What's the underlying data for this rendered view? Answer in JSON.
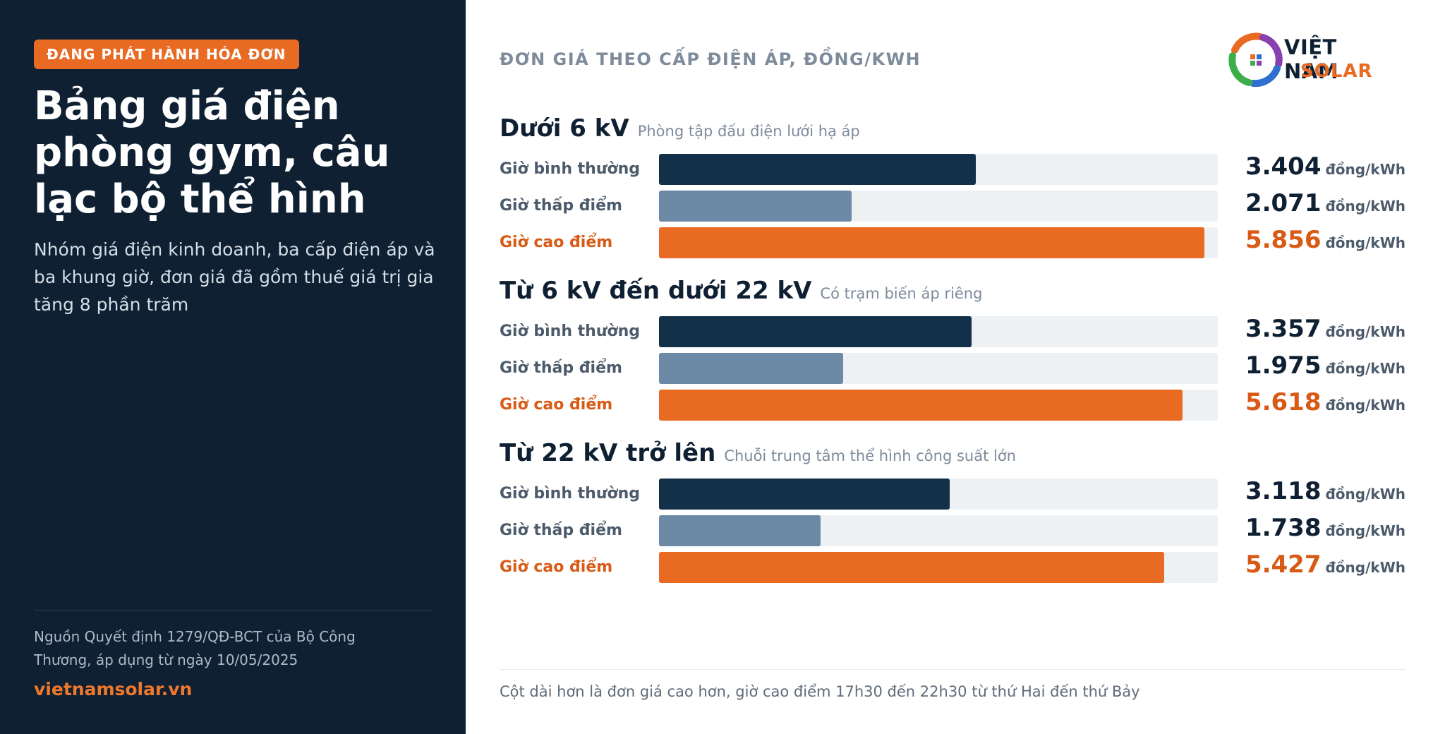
{
  "left": {
    "badge": "ĐANG PHÁT HÀNH HÓA ĐƠN",
    "title": "Bảng giá điện phòng gym, câu lạc bộ thể hình",
    "subtitle": "Nhóm giá điện kinh doanh, ba cấp điện áp và ba khung giờ, đơn giá đã gồm thuế giá trị gia tăng 8 phần trăm",
    "source": "Nguồn Quyết định 1279/QĐ-BCT của Bộ Công Thương, áp dụng từ ngày 10/05/2025",
    "site": "vietnamsolar.vn"
  },
  "logo": {
    "word1": "VIỆT NAM",
    "word2": "SOLAR"
  },
  "chart_data": {
    "type": "bar",
    "title": "ĐƠN GIÁ THEO CẤP ĐIỆN ÁP, ĐỒNG/KWH",
    "unit": "đồng/kWh",
    "xlim": [
      0,
      6000
    ],
    "groups": [
      {
        "name": "Dưới 6 kV",
        "note": "Phòng tập đấu điện lưới hạ áp",
        "rows": [
          {
            "label": "Giờ bình thường",
            "kind": "normal",
            "value": 3404,
            "value_label": "3.404"
          },
          {
            "label": "Giờ thấp điểm",
            "kind": "low",
            "value": 2071,
            "value_label": "2.071"
          },
          {
            "label": "Giờ cao điểm",
            "kind": "peak",
            "value": 5856,
            "value_label": "5.856"
          }
        ]
      },
      {
        "name": "Từ 6 kV đến dưới 22 kV",
        "note": "Có trạm biến áp riêng",
        "rows": [
          {
            "label": "Giờ bình thường",
            "kind": "normal",
            "value": 3357,
            "value_label": "3.357"
          },
          {
            "label": "Giờ thấp điểm",
            "kind": "low",
            "value": 1975,
            "value_label": "1.975"
          },
          {
            "label": "Giờ cao điểm",
            "kind": "peak",
            "value": 5618,
            "value_label": "5.618"
          }
        ]
      },
      {
        "name": "Từ 22 kV trở lên",
        "note": "Chuỗi trung tâm thể hình công suất lớn",
        "rows": [
          {
            "label": "Giờ bình thường",
            "kind": "normal",
            "value": 3118,
            "value_label": "3.118"
          },
          {
            "label": "Giờ thấp điểm",
            "kind": "low",
            "value": 1738,
            "value_label": "1.738"
          },
          {
            "label": "Giờ cao điểm",
            "kind": "peak",
            "value": 5427,
            "value_label": "5.427"
          }
        ]
      }
    ]
  },
  "footnote": "Cột dài hơn là đơn giá cao hơn, giờ cao điểm 17h30 đến 22h30 từ thứ Hai đến thứ Bảy",
  "colors": {
    "normal": "#13304a",
    "low": "#6c8aa6",
    "peak": "#e86a23",
    "panel": "#0f2033"
  }
}
